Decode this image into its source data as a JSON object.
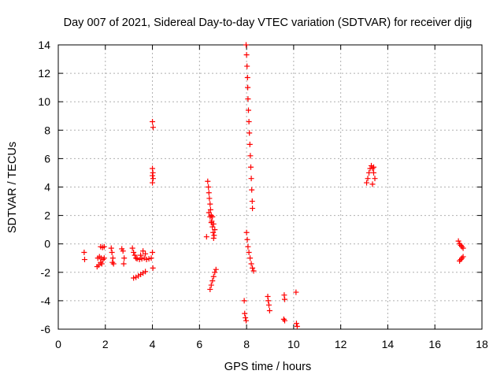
{
  "chart_data": {
    "type": "scatter",
    "title": "Day 007 of 2021, Sidereal Day-to-day VTEC variation (SDTVAR) for receiver djig",
    "xlabel": "GPS time / hours",
    "ylabel": "SDTVAR / TECUs",
    "xlim": [
      0,
      18
    ],
    "ylim": [
      -6,
      14
    ],
    "xticks": [
      0,
      2,
      4,
      6,
      8,
      10,
      12,
      14,
      16,
      18
    ],
    "yticks": [
      -6,
      -4,
      -2,
      0,
      2,
      4,
      6,
      8,
      10,
      12,
      14
    ],
    "grid": true,
    "marker": "+",
    "colors": {
      "marker": "#ff0000",
      "grid": "#b0b0b0",
      "axis": "#000000"
    },
    "series": [
      {
        "name": "SDTVAR",
        "points": [
          [
            1.1,
            -0.6
          ],
          [
            1.12,
            -1.1
          ],
          [
            1.65,
            -1.6
          ],
          [
            1.72,
            -1.5
          ],
          [
            1.8,
            -1.3
          ],
          [
            1.85,
            -1.4
          ],
          [
            1.68,
            -1.0
          ],
          [
            1.75,
            -0.9
          ],
          [
            1.82,
            -1.0
          ],
          [
            1.9,
            -1.1
          ],
          [
            1.95,
            -1.0
          ],
          [
            1.8,
            -0.2
          ],
          [
            1.88,
            -0.25
          ],
          [
            1.95,
            -0.2
          ],
          [
            2.25,
            -0.3
          ],
          [
            2.28,
            -0.6
          ],
          [
            2.32,
            -1.0
          ],
          [
            2.35,
            -1.4
          ],
          [
            2.3,
            -1.3
          ],
          [
            2.7,
            -0.35
          ],
          [
            2.75,
            -0.5
          ],
          [
            2.8,
            -1.0
          ],
          [
            2.78,
            -1.4
          ],
          [
            3.15,
            -0.3
          ],
          [
            3.2,
            -0.6
          ],
          [
            3.25,
            -0.8
          ],
          [
            3.3,
            -1.0
          ],
          [
            3.35,
            -1.05
          ],
          [
            3.45,
            -1.1
          ],
          [
            3.55,
            -1.05
          ],
          [
            3.65,
            -1.0
          ],
          [
            3.75,
            -1.1
          ],
          [
            3.85,
            -1.05
          ],
          [
            3.95,
            -1.0
          ],
          [
            3.5,
            -0.8
          ],
          [
            3.7,
            -0.7
          ],
          [
            3.6,
            -0.5
          ],
          [
            3.2,
            -2.4
          ],
          [
            3.3,
            -2.35
          ],
          [
            3.4,
            -2.25
          ],
          [
            3.5,
            -2.15
          ],
          [
            3.6,
            -2.05
          ],
          [
            3.7,
            -1.95
          ],
          [
            4.0,
            -0.6
          ],
          [
            4.02,
            -1.7
          ],
          [
            4.0,
            8.6
          ],
          [
            4.03,
            8.2
          ],
          [
            4.0,
            5.3
          ],
          [
            4.02,
            5.0
          ],
          [
            4.0,
            4.8
          ],
          [
            4.03,
            4.6
          ],
          [
            4.0,
            4.3
          ],
          [
            6.3,
            0.5
          ],
          [
            6.35,
            4.4
          ],
          [
            6.38,
            4.0
          ],
          [
            6.4,
            3.6
          ],
          [
            6.42,
            3.2
          ],
          [
            6.45,
            2.8
          ],
          [
            6.47,
            2.4
          ],
          [
            6.5,
            2.0
          ],
          [
            6.52,
            1.6
          ],
          [
            6.55,
            1.2
          ],
          [
            6.58,
            0.8
          ],
          [
            6.6,
            0.4
          ],
          [
            6.4,
            2.2
          ],
          [
            6.45,
            1.9
          ],
          [
            6.5,
            1.5
          ],
          [
            6.55,
            1.9
          ],
          [
            6.6,
            1.4
          ],
          [
            6.65,
            1.0
          ],
          [
            6.62,
            0.6
          ],
          [
            6.45,
            -3.2
          ],
          [
            6.5,
            -2.9
          ],
          [
            6.55,
            -2.6
          ],
          [
            6.6,
            -2.3
          ],
          [
            6.65,
            -2.0
          ],
          [
            6.7,
            -1.8
          ],
          [
            7.98,
            14.0
          ],
          [
            8.0,
            13.3
          ],
          [
            8.02,
            12.5
          ],
          [
            8.04,
            11.7
          ],
          [
            8.05,
            11.0
          ],
          [
            8.06,
            10.2
          ],
          [
            8.08,
            9.4
          ],
          [
            8.1,
            8.6
          ],
          [
            8.12,
            7.8
          ],
          [
            8.14,
            7.0
          ],
          [
            8.16,
            6.2
          ],
          [
            8.18,
            5.4
          ],
          [
            8.2,
            4.6
          ],
          [
            8.22,
            3.8
          ],
          [
            8.24,
            3.0
          ],
          [
            8.25,
            2.5
          ],
          [
            8.0,
            0.8
          ],
          [
            8.03,
            0.3
          ],
          [
            8.06,
            -0.2
          ],
          [
            8.1,
            -0.6
          ],
          [
            8.15,
            -1.0
          ],
          [
            8.2,
            -1.4
          ],
          [
            8.25,
            -1.7
          ],
          [
            8.3,
            -1.9
          ],
          [
            7.9,
            -4.0
          ],
          [
            7.92,
            -4.9
          ],
          [
            7.95,
            -5.2
          ],
          [
            7.98,
            -5.4
          ],
          [
            8.9,
            -3.7
          ],
          [
            8.92,
            -4.0
          ],
          [
            8.95,
            -4.3
          ],
          [
            8.98,
            -4.7
          ],
          [
            9.6,
            -3.6
          ],
          [
            9.62,
            -3.9
          ],
          [
            9.58,
            -5.3
          ],
          [
            9.62,
            -5.4
          ],
          [
            10.1,
            -3.4
          ],
          [
            10.12,
            -5.6
          ],
          [
            10.15,
            -5.8
          ],
          [
            13.1,
            4.3
          ],
          [
            13.15,
            4.6
          ],
          [
            13.2,
            5.0
          ],
          [
            13.25,
            5.3
          ],
          [
            13.3,
            5.5
          ],
          [
            13.35,
            5.3
          ],
          [
            13.4,
            5.0
          ],
          [
            13.45,
            4.6
          ],
          [
            13.35,
            4.2
          ],
          [
            13.4,
            5.4
          ],
          [
            17.0,
            0.2
          ],
          [
            17.05,
            0.0
          ],
          [
            17.1,
            -0.1
          ],
          [
            17.15,
            -0.2
          ],
          [
            17.2,
            -0.3
          ],
          [
            17.05,
            -1.2
          ],
          [
            17.1,
            -1.1
          ],
          [
            17.15,
            -1.0
          ],
          [
            17.2,
            -0.9
          ]
        ]
      }
    ]
  }
}
